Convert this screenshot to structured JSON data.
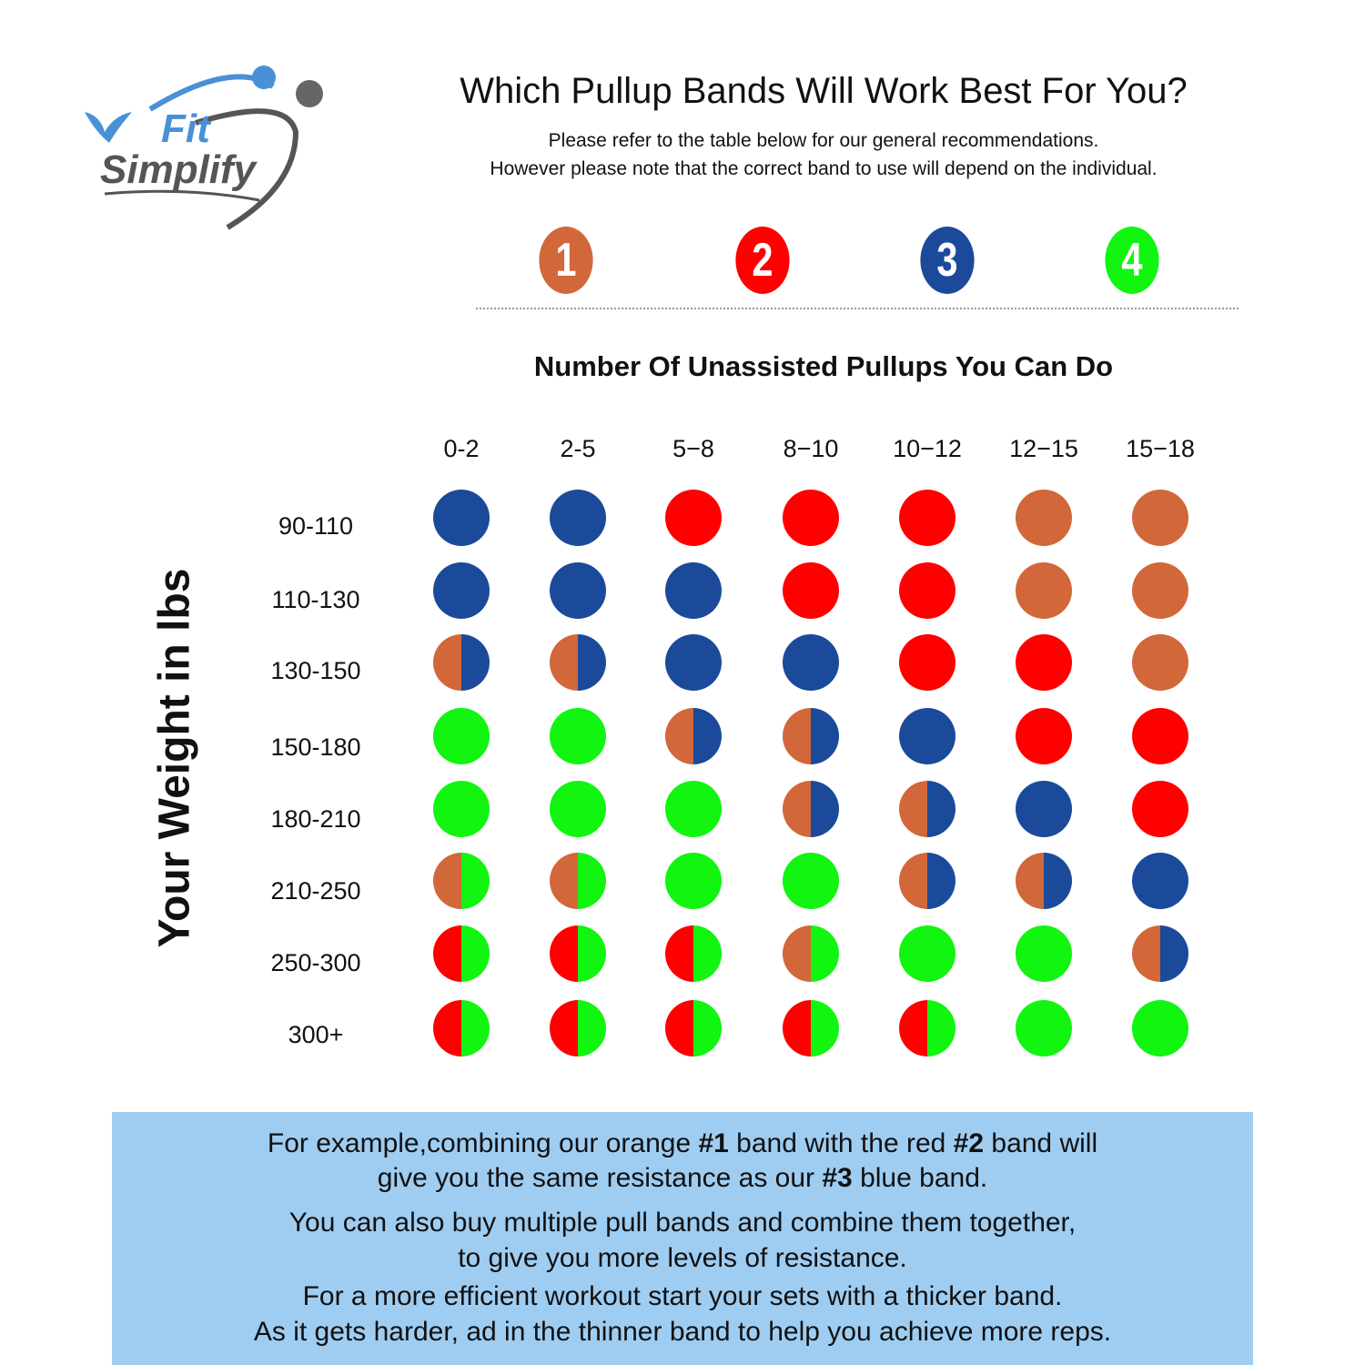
{
  "logo": {
    "text_top": "Fit",
    "text_bottom": "Simplify"
  },
  "header": {
    "title": "Which Pullup Bands Will Work Best For You?",
    "subtitle_lines": [
      "Please refer to the table below for our general recommendations.",
      "However please note that the correct band to use will depend on the individual."
    ]
  },
  "bands": [
    {
      "number": "1",
      "name": "orange",
      "color": "#D2673A"
    },
    {
      "number": "2",
      "name": "red",
      "color": "#FF0000"
    },
    {
      "number": "3",
      "name": "blue",
      "color": "#1B4A9A"
    },
    {
      "number": "4",
      "name": "green",
      "color": "#11F511"
    }
  ],
  "table": {
    "column_title": "Number Of Unassisted Pullups You Can Do",
    "row_title": "Your Weight in lbs",
    "columns": [
      "0-2",
      "2-5",
      "5−8",
      "8−10",
      "10−12",
      "12−15",
      "15−18"
    ],
    "rows": [
      {
        "label": "90-110",
        "cells": [
          [
            "3"
          ],
          [
            "3"
          ],
          [
            "2"
          ],
          [
            "2"
          ],
          [
            "2"
          ],
          [
            "1"
          ],
          [
            "1"
          ]
        ]
      },
      {
        "label": "110-130",
        "cells": [
          [
            "3"
          ],
          [
            "3"
          ],
          [
            "3"
          ],
          [
            "2"
          ],
          [
            "2"
          ],
          [
            "1"
          ],
          [
            "1"
          ]
        ]
      },
      {
        "label": "130-150",
        "cells": [
          [
            "1",
            "3"
          ],
          [
            "1",
            "3"
          ],
          [
            "3"
          ],
          [
            "3"
          ],
          [
            "2"
          ],
          [
            "2"
          ],
          [
            "1"
          ]
        ]
      },
      {
        "label": "150-180",
        "cells": [
          [
            "4"
          ],
          [
            "4"
          ],
          [
            "1",
            "3"
          ],
          [
            "1",
            "3"
          ],
          [
            "3"
          ],
          [
            "2"
          ],
          [
            "2"
          ]
        ]
      },
      {
        "label": "180-210",
        "cells": [
          [
            "4"
          ],
          [
            "4"
          ],
          [
            "4"
          ],
          [
            "1",
            "3"
          ],
          [
            "1",
            "3"
          ],
          [
            "3"
          ],
          [
            "2"
          ]
        ]
      },
      {
        "label": "210-250",
        "cells": [
          [
            "1",
            "4"
          ],
          [
            "1",
            "4"
          ],
          [
            "4"
          ],
          [
            "4"
          ],
          [
            "1",
            "3"
          ],
          [
            "1",
            "3"
          ],
          [
            "3"
          ]
        ]
      },
      {
        "label": "250-300",
        "cells": [
          [
            "2",
            "4"
          ],
          [
            "2",
            "4"
          ],
          [
            "2",
            "4"
          ],
          [
            "1",
            "4"
          ],
          [
            "4"
          ],
          [
            "4"
          ],
          [
            "1",
            "3"
          ]
        ]
      },
      {
        "label": "300+",
        "cells": [
          [
            "2",
            "4"
          ],
          [
            "2",
            "4"
          ],
          [
            "2",
            "4"
          ],
          [
            "2",
            "4"
          ],
          [
            "2",
            "4"
          ],
          [
            "4"
          ],
          [
            "4"
          ]
        ]
      }
    ]
  },
  "note": {
    "line1_a": "For example,combining our orange ",
    "line1_b": "#1",
    "line1_c": "  band with the red ",
    "line1_d": "#2",
    "line1_e": " band will",
    "line2_a": "give you the same resistance as our ",
    "line2_b": "#3",
    "line2_c": "  blue band.",
    "line3": "You can also buy multiple pull bands and combine them together,",
    "line4": "to give you more levels of resistance.",
    "line5": "For a more efficient workout start your sets with a thicker band.",
    "line6": "As it gets harder, ad in the thinner band to help you achieve more reps."
  }
}
